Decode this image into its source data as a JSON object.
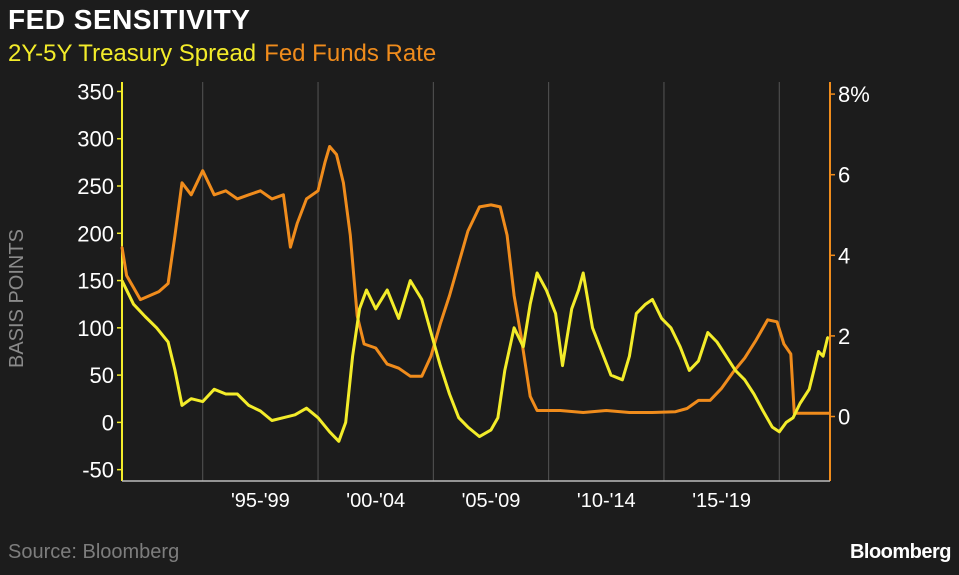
{
  "header": {
    "title": "FED SENSITIVITY",
    "legend_items": [
      {
        "label": "2Y-5Y Treasury Spread",
        "color": "#f3ec2a"
      },
      {
        "label": "Fed Funds Rate",
        "color": "#f08c1c"
      }
    ]
  },
  "footer": {
    "source": "Source: Bloomberg",
    "brand": "Bloomberg"
  },
  "colors": {
    "background": "#1c1c1c",
    "spread": "#f3ec2a",
    "rate": "#f08c1c",
    "grid": "#555555"
  },
  "chart_data": {
    "type": "line",
    "title": "FED SENSITIVITY",
    "y_left": {
      "label": "BASIS POINTS",
      "ticks": [
        350,
        300,
        250,
        200,
        150,
        100,
        50,
        0,
        -50
      ],
      "range": [
        -62,
        360
      ]
    },
    "y_right": {
      "ticks": [
        "8%",
        "6",
        "4",
        "2",
        "0"
      ],
      "tick_values": [
        8,
        6,
        4,
        2,
        0
      ],
      "range": [
        -1.6,
        8.3
      ]
    },
    "x": {
      "range": [
        1991.0,
        2021.7
      ],
      "tick_labels": [
        "'95-'99",
        "'00-'04",
        "'05-'09",
        "'10-'14",
        "'15-'19"
      ],
      "tick_centers": [
        1997.0,
        2002.0,
        2007.0,
        2012.0,
        2017.0
      ],
      "gridlines": [
        1994.5,
        1999.5,
        2004.5,
        2009.5,
        2014.5,
        2019.5
      ]
    },
    "series": [
      {
        "name": "2Y-5Y Treasury Spread",
        "axis": "left",
        "points": [
          [
            1991.0,
            150
          ],
          [
            1991.5,
            125
          ],
          [
            1992.0,
            112
          ],
          [
            1992.5,
            100
          ],
          [
            1993.0,
            85
          ],
          [
            1993.3,
            55
          ],
          [
            1993.6,
            18
          ],
          [
            1994.0,
            25
          ],
          [
            1994.5,
            22
          ],
          [
            1995.0,
            35
          ],
          [
            1995.5,
            30
          ],
          [
            1996.0,
            30
          ],
          [
            1996.5,
            18
          ],
          [
            1997.0,
            12
          ],
          [
            1997.5,
            2
          ],
          [
            1998.0,
            5
          ],
          [
            1998.5,
            8
          ],
          [
            1999.0,
            15
          ],
          [
            1999.5,
            5
          ],
          [
            2000.0,
            -10
          ],
          [
            2000.4,
            -20
          ],
          [
            2000.7,
            0
          ],
          [
            2001.0,
            70
          ],
          [
            2001.3,
            120
          ],
          [
            2001.6,
            140
          ],
          [
            2002.0,
            120
          ],
          [
            2002.5,
            140
          ],
          [
            2003.0,
            110
          ],
          [
            2003.5,
            150
          ],
          [
            2004.0,
            130
          ],
          [
            2004.4,
            95
          ],
          [
            2004.8,
            60
          ],
          [
            2005.2,
            30
          ],
          [
            2005.6,
            5
          ],
          [
            2006.0,
            -5
          ],
          [
            2006.5,
            -15
          ],
          [
            2007.0,
            -8
          ],
          [
            2007.3,
            5
          ],
          [
            2007.6,
            55
          ],
          [
            2008.0,
            100
          ],
          [
            2008.4,
            80
          ],
          [
            2008.7,
            125
          ],
          [
            2009.0,
            158
          ],
          [
            2009.4,
            140
          ],
          [
            2009.8,
            115
          ],
          [
            2010.1,
            60
          ],
          [
            2010.5,
            120
          ],
          [
            2010.8,
            140
          ],
          [
            2011.0,
            158
          ],
          [
            2011.4,
            100
          ],
          [
            2011.8,
            75
          ],
          [
            2012.2,
            50
          ],
          [
            2012.7,
            45
          ],
          [
            2013.0,
            70
          ],
          [
            2013.3,
            115
          ],
          [
            2013.7,
            125
          ],
          [
            2014.0,
            130
          ],
          [
            2014.4,
            110
          ],
          [
            2014.8,
            100
          ],
          [
            2015.2,
            80
          ],
          [
            2015.6,
            55
          ],
          [
            2016.0,
            65
          ],
          [
            2016.4,
            95
          ],
          [
            2016.8,
            85
          ],
          [
            2017.2,
            70
          ],
          [
            2017.6,
            55
          ],
          [
            2018.0,
            45
          ],
          [
            2018.4,
            30
          ],
          [
            2018.8,
            12
          ],
          [
            2019.2,
            -5
          ],
          [
            2019.5,
            -10
          ],
          [
            2019.8,
            0
          ],
          [
            2020.1,
            5
          ],
          [
            2020.4,
            20
          ],
          [
            2020.8,
            35
          ],
          [
            2021.0,
            55
          ],
          [
            2021.2,
            75
          ],
          [
            2021.4,
            70
          ],
          [
            2021.6,
            90
          ]
        ]
      },
      {
        "name": "Fed Funds Rate",
        "axis": "right",
        "points": [
          [
            1991.0,
            4.2
          ],
          [
            1991.2,
            3.5
          ],
          [
            1991.5,
            3.2
          ],
          [
            1991.8,
            2.9
          ],
          [
            1992.2,
            3.0
          ],
          [
            1992.6,
            3.1
          ],
          [
            1993.0,
            3.3
          ],
          [
            1993.3,
            4.5
          ],
          [
            1993.6,
            5.8
          ],
          [
            1994.0,
            5.5
          ],
          [
            1994.5,
            6.1
          ],
          [
            1995.0,
            5.5
          ],
          [
            1995.5,
            5.6
          ],
          [
            1996.0,
            5.4
          ],
          [
            1996.5,
            5.5
          ],
          [
            1997.0,
            5.6
          ],
          [
            1997.5,
            5.4
          ],
          [
            1998.0,
            5.5
          ],
          [
            1998.3,
            4.2
          ],
          [
            1998.6,
            4.8
          ],
          [
            1999.0,
            5.4
          ],
          [
            1999.5,
            5.6
          ],
          [
            1999.8,
            6.3
          ],
          [
            2000.0,
            6.7
          ],
          [
            2000.3,
            6.5
          ],
          [
            2000.6,
            5.8
          ],
          [
            2000.9,
            4.5
          ],
          [
            2001.2,
            2.5
          ],
          [
            2001.5,
            1.8
          ],
          [
            2002.0,
            1.7
          ],
          [
            2002.5,
            1.3
          ],
          [
            2003.0,
            1.2
          ],
          [
            2003.5,
            1.0
          ],
          [
            2004.0,
            1.0
          ],
          [
            2004.4,
            1.5
          ],
          [
            2004.8,
            2.3
          ],
          [
            2005.2,
            3.0
          ],
          [
            2005.6,
            3.8
          ],
          [
            2006.0,
            4.6
          ],
          [
            2006.5,
            5.2
          ],
          [
            2007.0,
            5.25
          ],
          [
            2007.4,
            5.2
          ],
          [
            2007.7,
            4.5
          ],
          [
            2008.0,
            3.0
          ],
          [
            2008.3,
            2.0
          ],
          [
            2008.7,
            0.5
          ],
          [
            2009.0,
            0.15
          ],
          [
            2010.0,
            0.15
          ],
          [
            2011.0,
            0.1
          ],
          [
            2012.0,
            0.15
          ],
          [
            2013.0,
            0.1
          ],
          [
            2014.0,
            0.1
          ],
          [
            2015.0,
            0.12
          ],
          [
            2015.5,
            0.2
          ],
          [
            2016.0,
            0.4
          ],
          [
            2016.5,
            0.4
          ],
          [
            2017.0,
            0.7
          ],
          [
            2017.5,
            1.1
          ],
          [
            2018.0,
            1.45
          ],
          [
            2018.5,
            1.9
          ],
          [
            2019.0,
            2.4
          ],
          [
            2019.4,
            2.35
          ],
          [
            2019.7,
            1.8
          ],
          [
            2020.0,
            1.55
          ],
          [
            2020.15,
            0.08
          ],
          [
            2020.5,
            0.08
          ],
          [
            2021.0,
            0.08
          ],
          [
            2021.7,
            0.08
          ]
        ]
      }
    ]
  }
}
